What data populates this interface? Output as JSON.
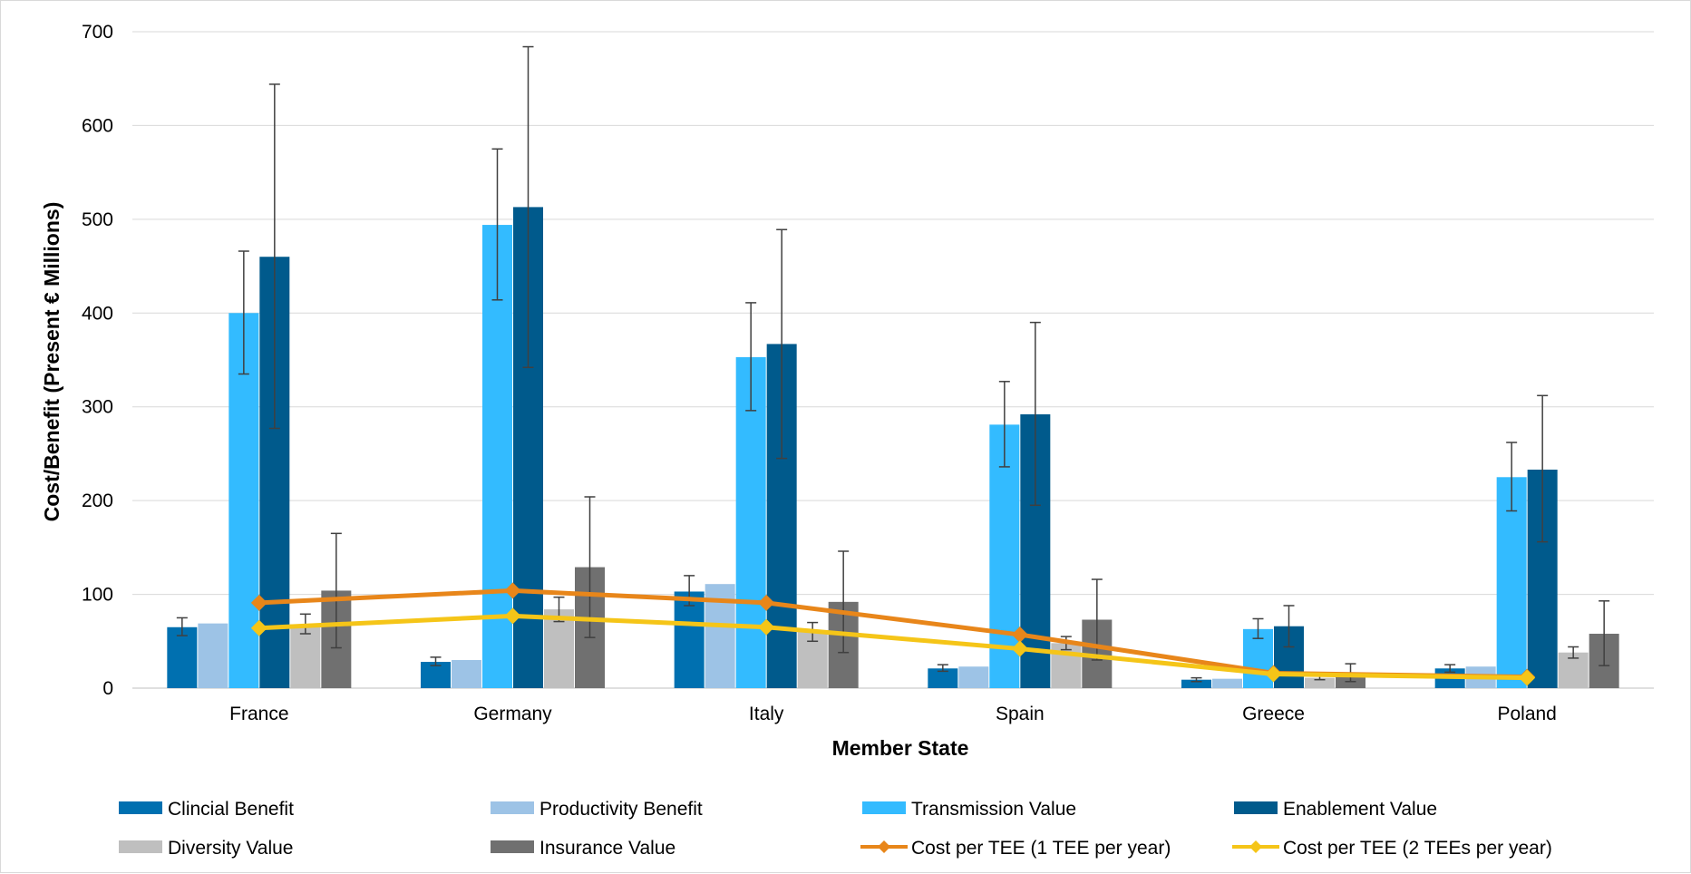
{
  "chart_data": {
    "type": "bar",
    "xlabel": "Member State",
    "ylabel": "Cost/Benefit (Present € Millions)",
    "ylim": [
      0,
      700
    ],
    "yticks": [
      0,
      100,
      200,
      300,
      400,
      500,
      600,
      700
    ],
    "grid": true,
    "legend_position": "bottom",
    "categories": [
      "France",
      "Germany",
      "Italy",
      "Spain",
      "Greece",
      "Poland"
    ],
    "series": [
      {
        "name": "Clincial Benefit",
        "kind": "bar",
        "color": "#0070b0",
        "values": [
          65,
          28,
          103,
          21,
          9,
          21
        ],
        "err_low": [
          56,
          24,
          88,
          18,
          7,
          17
        ],
        "err_high": [
          75,
          33,
          120,
          25,
          11,
          25
        ]
      },
      {
        "name": "Productivity Benefit",
        "kind": "bar",
        "color": "#9dc3e6",
        "values": [
          69,
          30,
          111,
          23,
          10,
          23
        ],
        "err_low": [
          69,
          30,
          111,
          23,
          10,
          23
        ],
        "err_high": [
          69,
          30,
          111,
          23,
          10,
          23
        ]
      },
      {
        "name": "Transmission Value",
        "kind": "bar",
        "color": "#33bbff",
        "values": [
          400,
          494,
          353,
          281,
          63,
          225
        ],
        "err_low": [
          335,
          414,
          296,
          236,
          53,
          189
        ],
        "err_high": [
          466,
          575,
          411,
          327,
          74,
          262
        ]
      },
      {
        "name": "Enablement Value",
        "kind": "bar",
        "color": "#005a8c",
        "values": [
          460,
          513,
          367,
          292,
          66,
          233
        ],
        "err_low": [
          277,
          342,
          245,
          195,
          44,
          156
        ],
        "err_high": [
          644,
          684,
          489,
          390,
          88,
          312
        ]
      },
      {
        "name": "Diversity Value",
        "kind": "bar",
        "color": "#bfbfbf",
        "values": [
          68,
          84,
          60,
          48,
          11,
          38
        ],
        "err_low": [
          58,
          71,
          50,
          41,
          9,
          32
        ],
        "err_high": [
          79,
          97,
          70,
          55,
          13,
          44
        ]
      },
      {
        "name": "Insurance Value",
        "kind": "bar",
        "color": "#707070",
        "values": [
          104,
          129,
          92,
          73,
          16,
          58
        ],
        "err_low": [
          43,
          54,
          38,
          30,
          7,
          24
        ],
        "err_high": [
          165,
          204,
          146,
          116,
          26,
          93
        ]
      },
      {
        "name": "Cost per TEE (1 TEE per year)",
        "kind": "line",
        "color": "#e8861a",
        "values": [
          91,
          104,
          91,
          57,
          16,
          12
        ]
      },
      {
        "name": "Cost per TEE (2 TEEs per year)",
        "kind": "line",
        "color": "#f5c518",
        "values": [
          64,
          77,
          65,
          42,
          15,
          11
        ]
      }
    ]
  }
}
